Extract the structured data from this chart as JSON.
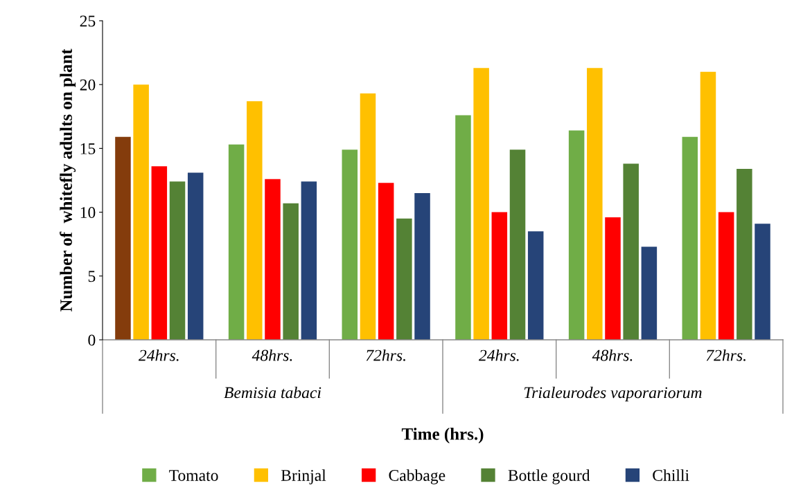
{
  "chart_data": {
    "type": "bar",
    "xlabel": "Time (hrs.)",
    "ylabel": "Number of  whitefly adults on plant",
    "categories": [
      "24hrs.",
      "48hrs.",
      "72hrs.",
      "24hrs.",
      "48hrs.",
      "72hrs."
    ],
    "annotations": [
      "Bemisia tabaci",
      "Trialeurodes vaporariorum"
    ],
    "series": [
      {
        "name": "Tomato",
        "color": "#70ad47",
        "colors": [
          "#843c0c",
          "#70ad47",
          "#70ad47",
          "#70ad47",
          "#70ad47",
          "#70ad47"
        ],
        "values": [
          15.9,
          15.3,
          14.9,
          17.6,
          16.4,
          15.9
        ]
      },
      {
        "name": "Brinjal",
        "color": "#ffc000",
        "values": [
          20.0,
          18.7,
          19.3,
          21.3,
          21.3,
          21.0
        ]
      },
      {
        "name": "Cabbage",
        "color": "#ff0000",
        "values": [
          13.6,
          12.6,
          12.3,
          10.0,
          9.6,
          10.0
        ]
      },
      {
        "name": "Bottle gourd",
        "color": "#548235",
        "values": [
          12.4,
          10.7,
          9.5,
          14.9,
          13.8,
          13.4
        ]
      },
      {
        "name": "Chilli",
        "color": "#264478",
        "values": [
          13.1,
          12.4,
          11.5,
          8.5,
          7.3,
          9.1
        ]
      }
    ],
    "ylim": [
      0,
      25
    ],
    "yticks": [
      0,
      5,
      10,
      15,
      20,
      25
    ],
    "grid": false,
    "legend": "bottom"
  }
}
